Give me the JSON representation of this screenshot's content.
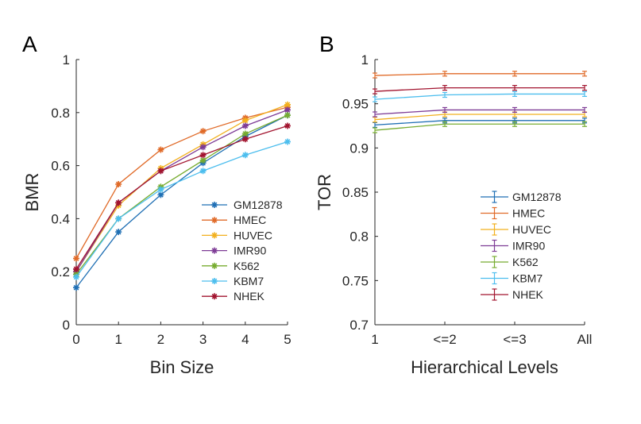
{
  "chart_data": [
    {
      "panel": "A",
      "type": "line",
      "title": "",
      "xlabel": "Bin Size",
      "ylabel": "BMR",
      "x": [
        0,
        1,
        2,
        3,
        4,
        5
      ],
      "xticks": [
        "0",
        "1",
        "2",
        "3",
        "4",
        "5"
      ],
      "yticks": [
        "0",
        "0.2",
        "0.4",
        "0.6",
        "0.8",
        "1"
      ],
      "xlim": [
        0,
        5
      ],
      "ylim": [
        0,
        1
      ],
      "grid": false,
      "legend_position": "lower-right",
      "marker": "asterisk",
      "series": [
        {
          "name": "GM12878",
          "color": "#1f6fb4",
          "values": [
            0.14,
            0.35,
            0.49,
            0.61,
            0.71,
            0.79
          ]
        },
        {
          "name": "HMEC",
          "color": "#e06a28",
          "values": [
            0.25,
            0.53,
            0.66,
            0.73,
            0.78,
            0.82
          ]
        },
        {
          "name": "HUVEC",
          "color": "#f2b01e",
          "values": [
            0.2,
            0.45,
            0.59,
            0.68,
            0.77,
            0.83
          ]
        },
        {
          "name": "IMR90",
          "color": "#7e3c96",
          "values": [
            0.2,
            0.46,
            0.58,
            0.67,
            0.75,
            0.81
          ]
        },
        {
          "name": "K562",
          "color": "#77ac30",
          "values": [
            0.19,
            0.4,
            0.52,
            0.62,
            0.72,
            0.79
          ]
        },
        {
          "name": "KBM7",
          "color": "#4dbeee",
          "values": [
            0.18,
            0.4,
            0.51,
            0.58,
            0.64,
            0.69
          ]
        },
        {
          "name": "NHEK",
          "color": "#a2142f",
          "values": [
            0.21,
            0.46,
            0.58,
            0.64,
            0.7,
            0.75
          ]
        }
      ]
    },
    {
      "panel": "B",
      "type": "line",
      "title": "",
      "xlabel": "Hierarchical Levels",
      "ylabel": "TOR",
      "x": [
        "1",
        "<=2",
        "<=3",
        "All"
      ],
      "xticks": [
        "1",
        "<=2",
        "<=3",
        "All"
      ],
      "yticks": [
        "0.7",
        "0.75",
        "0.8",
        "0.85",
        "0.9",
        "0.95",
        "1"
      ],
      "ylim": [
        0.7,
        1
      ],
      "grid": false,
      "legend_position": "lower-right",
      "marker": "errorbar",
      "series": [
        {
          "name": "GM12878",
          "color": "#1f6fb4",
          "values": [
            0.926,
            0.931,
            0.931,
            0.931
          ]
        },
        {
          "name": "HMEC",
          "color": "#e06a28",
          "values": [
            0.982,
            0.984,
            0.984,
            0.984
          ]
        },
        {
          "name": "HUVEC",
          "color": "#f2b01e",
          "values": [
            0.932,
            0.938,
            0.938,
            0.938
          ]
        },
        {
          "name": "IMR90",
          "color": "#7e3c96",
          "values": [
            0.938,
            0.943,
            0.943,
            0.943
          ]
        },
        {
          "name": "K562",
          "color": "#77ac30",
          "values": [
            0.92,
            0.927,
            0.927,
            0.927
          ]
        },
        {
          "name": "KBM7",
          "color": "#4dbeee",
          "values": [
            0.955,
            0.96,
            0.961,
            0.961
          ]
        },
        {
          "name": "NHEK",
          "color": "#a2142f",
          "values": [
            0.964,
            0.968,
            0.968,
            0.968
          ]
        }
      ]
    }
  ]
}
